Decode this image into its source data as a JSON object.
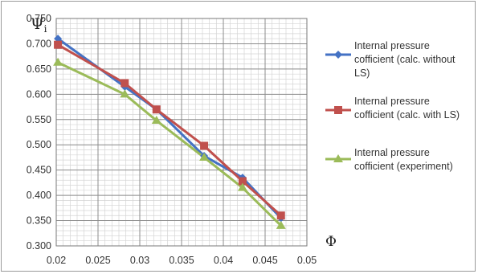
{
  "chart_data": {
    "type": "line",
    "title": "",
    "ylabel_main": "Ψ",
    "ylabel_sub": "i",
    "xlabel": "Φ",
    "xlim": [
      0.02,
      0.05
    ],
    "ylim": [
      0.3,
      0.75
    ],
    "x_ticks": [
      0.02,
      0.025,
      0.03,
      0.035,
      0.04,
      0.045,
      0.05
    ],
    "x_tick_labels": [
      "0.02",
      "0.025",
      "0.03",
      "0.035",
      "0.04",
      "0.045",
      "0.05"
    ],
    "y_ticks": [
      0.3,
      0.35,
      0.4,
      0.45,
      0.5,
      0.55,
      0.6,
      0.65,
      0.7,
      0.75
    ],
    "y_tick_labels": [
      "0.300",
      "0.350",
      "0.400",
      "0.450",
      "0.500",
      "0.550",
      "0.600",
      "0.650",
      "0.700",
      "0.750"
    ],
    "grid": true,
    "legend_position": "right",
    "series": [
      {
        "name_lines": [
          "Internal pressure",
          "cofficient (calc. without",
          "LS)"
        ],
        "color": "#4472C4",
        "marker": "diamond",
        "x": [
          0.0202,
          0.0282,
          0.032,
          0.0377,
          0.0423,
          0.0469
        ],
        "y": [
          0.71,
          0.615,
          0.57,
          0.478,
          0.435,
          0.355
        ]
      },
      {
        "name_lines": [
          "Internal pressure",
          "cofficient (calc. with LS)"
        ],
        "color": "#C0504D",
        "marker": "square",
        "x": [
          0.0202,
          0.0282,
          0.032,
          0.0377,
          0.0423,
          0.0469
        ],
        "y": [
          0.698,
          0.622,
          0.57,
          0.498,
          0.428,
          0.36
        ]
      },
      {
        "name_lines": [
          "Internal pressure",
          "cofficient (experiment)"
        ],
        "color": "#9BBB59",
        "marker": "triangle",
        "x": [
          0.0202,
          0.0282,
          0.032,
          0.0377,
          0.0423,
          0.0469
        ],
        "y": [
          0.663,
          0.6,
          0.548,
          0.475,
          0.415,
          0.34
        ]
      }
    ]
  }
}
